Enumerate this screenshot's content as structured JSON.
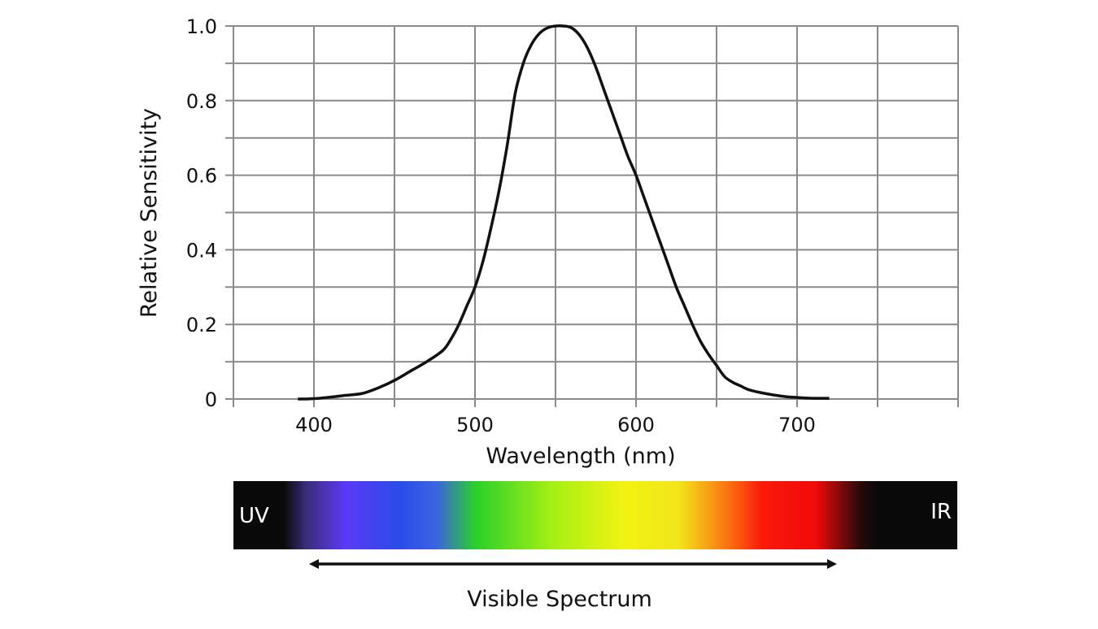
{
  "chart_data": {
    "type": "line",
    "xlabel": "Wavelength (nm)",
    "ylabel": "Relative Sensitivity",
    "xlim": [
      350,
      800
    ],
    "ylim": [
      0,
      1.0
    ],
    "x_ticks": [
      400,
      500,
      600,
      700
    ],
    "x_tick_labels": [
      "400",
      "500",
      "600",
      "700"
    ],
    "y_ticks": [
      0,
      0.2,
      0.4,
      0.6,
      0.8,
      1.0
    ],
    "y_tick_labels": [
      "0",
      "0.2",
      "0.4",
      "0.6",
      "0.8",
      "1.0"
    ],
    "grid": true,
    "series": [
      {
        "color": "#111111",
        "x": [
          390,
          400,
          410,
          420,
          430,
          440,
          450,
          460,
          470,
          480,
          485,
          490,
          495,
          500,
          505,
          510,
          515,
          520,
          525,
          530,
          535,
          540,
          545,
          550,
          555,
          560,
          565,
          570,
          575,
          580,
          585,
          590,
          595,
          600,
          605,
          610,
          615,
          620,
          625,
          630,
          635,
          640,
          645,
          650,
          655,
          660,
          665,
          670,
          680,
          690,
          700,
          710,
          720
        ],
        "y": [
          0.0,
          0.001,
          0.005,
          0.01,
          0.015,
          0.03,
          0.05,
          0.075,
          0.1,
          0.13,
          0.16,
          0.2,
          0.25,
          0.3,
          0.37,
          0.46,
          0.56,
          0.68,
          0.82,
          0.9,
          0.95,
          0.98,
          0.995,
          1.0,
          1.0,
          0.995,
          0.975,
          0.94,
          0.89,
          0.83,
          0.77,
          0.71,
          0.65,
          0.6,
          0.54,
          0.48,
          0.42,
          0.36,
          0.3,
          0.25,
          0.2,
          0.155,
          0.12,
          0.09,
          0.06,
          0.045,
          0.035,
          0.025,
          0.015,
          0.008,
          0.004,
          0.002,
          0.002
        ]
      }
    ]
  },
  "spectrum_band": {
    "left_label": "UV",
    "right_label": "IR",
    "caption": "Visible Spectrum",
    "stops": [
      {
        "offset": 0.0,
        "color": "#0a0a0a"
      },
      {
        "offset": 0.07,
        "color": "#0a0a0a"
      },
      {
        "offset": 0.1,
        "color": "#3a2c7a"
      },
      {
        "offset": 0.155,
        "color": "#5b3af5"
      },
      {
        "offset": 0.23,
        "color": "#2a4de8"
      },
      {
        "offset": 0.28,
        "color": "#3b63e0"
      },
      {
        "offset": 0.335,
        "color": "#2ad02a"
      },
      {
        "offset": 0.44,
        "color": "#a6ef14"
      },
      {
        "offset": 0.54,
        "color": "#f2f212"
      },
      {
        "offset": 0.615,
        "color": "#f2e61a"
      },
      {
        "offset": 0.685,
        "color": "#fb6f10"
      },
      {
        "offset": 0.73,
        "color": "#fb1a0a"
      },
      {
        "offset": 0.805,
        "color": "#f00a0a"
      },
      {
        "offset": 0.865,
        "color": "#2a0a0a"
      },
      {
        "offset": 0.89,
        "color": "#0a0a0a"
      },
      {
        "offset": 1.0,
        "color": "#0a0a0a"
      }
    ]
  }
}
